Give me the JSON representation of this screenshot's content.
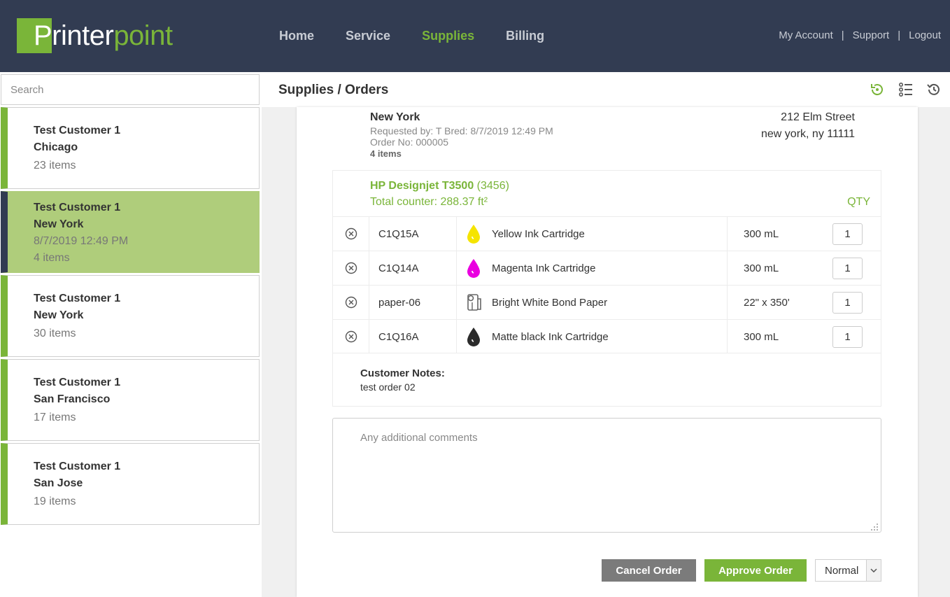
{
  "header": {
    "logo_part1": "Printer",
    "logo_part2": "point",
    "nav": [
      {
        "label": "Home"
      },
      {
        "label": "Service"
      },
      {
        "label": "Supplies"
      },
      {
        "label": "Billing"
      }
    ],
    "active_nav": "Supplies",
    "links": {
      "my_account": "My Account",
      "support": "Support",
      "logout": "Logout",
      "separator": "|"
    }
  },
  "sidebar": {
    "search_placeholder": "Search",
    "customers": [
      {
        "name": "Test Customer 1",
        "city": "Chicago",
        "items": "23 items"
      },
      {
        "name": "Test Customer 1",
        "city": "New York",
        "date": "8/7/2019 12:49 PM",
        "items": "4 items",
        "selected": true
      },
      {
        "name": "Test Customer 1",
        "city": "New York",
        "items": "30 items"
      },
      {
        "name": "Test Customer 1",
        "city": "San Francisco",
        "items": "17 items"
      },
      {
        "name": "Test Customer 1",
        "city": "San Jose",
        "items": "19 items"
      }
    ]
  },
  "main": {
    "title": "Supplies / Orders",
    "icons": [
      "refresh-icon",
      "list-icon",
      "history-icon"
    ],
    "order": {
      "location": "New York",
      "requested_by": "Requested by: T Bred: 8/7/2019 12:49 PM",
      "order_no": "Order No: 000005",
      "item_count": "4 items",
      "address_line1": "212 Elm Street",
      "address_line2": "new york, ny 11111"
    },
    "printer": {
      "model": "HP Designjet T3500",
      "id": "(3456)",
      "counter": "Total counter: 288.37 ft²",
      "qty_header": "QTY"
    },
    "items": [
      {
        "sku": "C1Q15A",
        "icon": "yellow-ink-drop-icon",
        "color": "#f5e400",
        "name": "Yellow Ink Cartridge",
        "size": "300 mL",
        "qty": "1"
      },
      {
        "sku": "C1Q14A",
        "icon": "magenta-ink-drop-icon",
        "color": "#ea00e0",
        "name": "Magenta Ink Cartridge",
        "size": "300 mL",
        "qty": "1"
      },
      {
        "sku": "paper-06",
        "icon": "paper-roll-icon",
        "color": "#666666",
        "name": "Bright White Bond Paper",
        "size": "22\" x 350'",
        "qty": "1"
      },
      {
        "sku": "C1Q16A",
        "icon": "black-ink-drop-icon",
        "color": "#2b2b2b",
        "name": "Matte black Ink Cartridge",
        "size": "300 mL",
        "qty": "1"
      }
    ],
    "notes_label": "Customer Notes:",
    "notes_text": "test order 02",
    "comments_placeholder": "Any additional comments",
    "buttons": {
      "cancel": "Cancel Order",
      "approve": "Approve Order"
    },
    "priority": "Normal"
  },
  "colors": {
    "brand_green": "#7ab539",
    "header_bg": "#323c52",
    "selected_card": "#afcd7b"
  }
}
